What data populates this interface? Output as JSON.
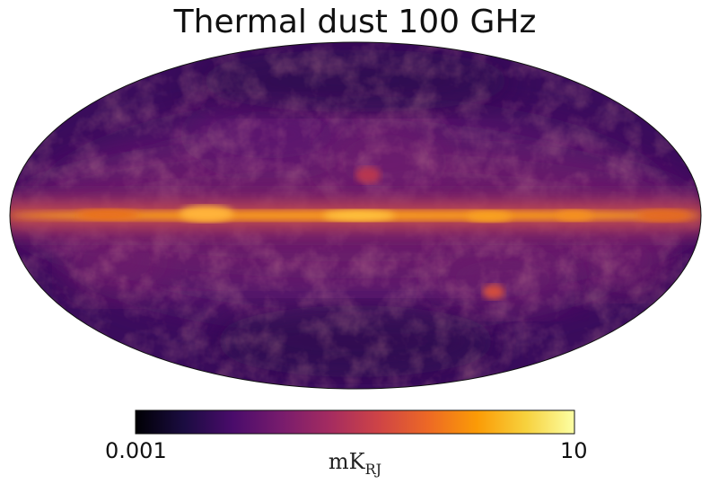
{
  "title": "Thermal dust 100 GHz",
  "projection": "mollweide",
  "colormap": {
    "name": "inferno",
    "stops": [
      "#000004",
      "#1b0c41",
      "#4a0c6b",
      "#781c6d",
      "#a52c60",
      "#cf4446",
      "#ed6925",
      "#fb9b06",
      "#f7d13d",
      "#fcffa4"
    ]
  },
  "colorbar": {
    "min_label": "0.001",
    "max_label": "10",
    "min_value": 0.001,
    "max_value": 10,
    "scale": "log",
    "unit_main": "mK",
    "unit_sub": "RJ"
  }
}
